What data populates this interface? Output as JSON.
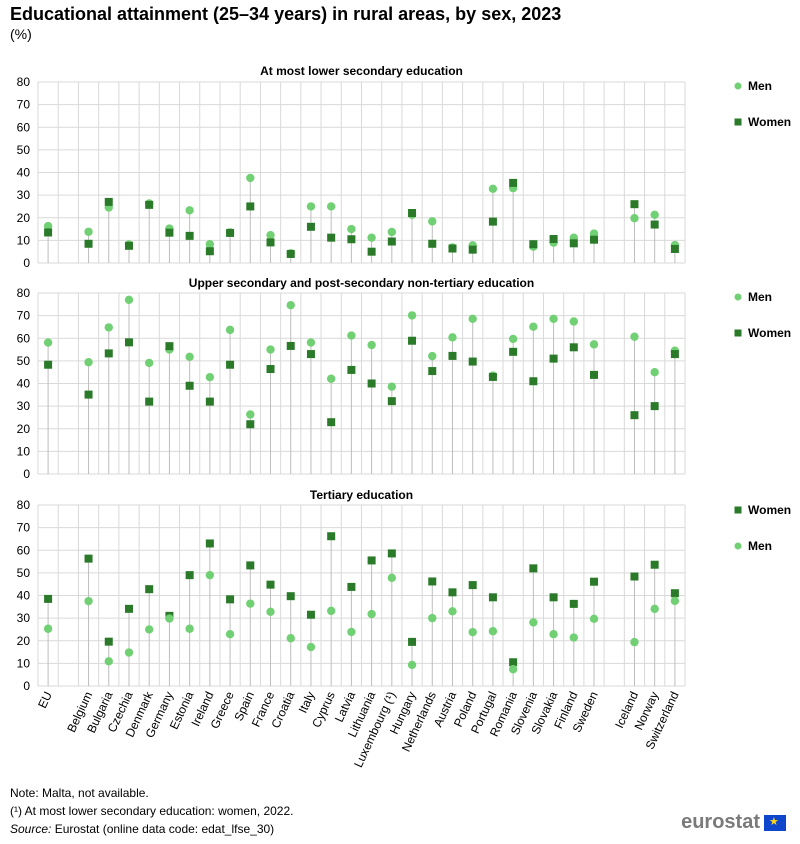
{
  "title": "Educational attainment (25–34 years) in rural areas, by sex, 2023",
  "unit": "(%)",
  "colors": {
    "men": "#71d073",
    "women": "#2a7a2a",
    "grid": "#d9d9d9",
    "stem": "#bdbdbd"
  },
  "chart_data": [
    {
      "type": "scatter",
      "title": "At most lower secondary education",
      "categories": [
        "EU",
        "Belgium",
        "Bulgaria",
        "Czechia",
        "Denmark",
        "Germany",
        "Estonia",
        "Ireland",
        "Greece",
        "Spain",
        "France",
        "Croatia",
        "Italy",
        "Cyprus",
        "Latvia",
        "Lithuania",
        "Luxembourg (¹)",
        "Hungary",
        "Netherlands",
        "Austria",
        "Poland",
        "Portugal",
        "Romania",
        "Slovenia",
        "Slovakia",
        "Finland",
        "Sweden",
        "Iceland",
        "Norway",
        "Switzerland"
      ],
      "ylim": [
        0,
        80
      ],
      "yticks": [
        0,
        10,
        20,
        30,
        40,
        50,
        60,
        70,
        80
      ],
      "legend": [
        "Men",
        "Women"
      ],
      "series": [
        {
          "name": "Men",
          "marker": "circle",
          "values": [
            16.3,
            13.8,
            24.5,
            8.2,
            26.3,
            15.2,
            23.3,
            8.3,
            13.5,
            37.6,
            12.3,
            4.3,
            25.0,
            25.0,
            15.0,
            11.2,
            13.7,
            21.3,
            18.4,
            6.9,
            7.8,
            32.8,
            33.1,
            7.2,
            9.0,
            11.2,
            13.0,
            19.8,
            21.3,
            7.9
          ]
        },
        {
          "name": "Women",
          "marker": "square",
          "values": [
            13.5,
            8.5,
            27.0,
            7.6,
            25.7,
            13.4,
            12.0,
            5.2,
            13.3,
            25.0,
            9.1,
            4.0,
            16.0,
            11.2,
            10.5,
            5.0,
            9.5,
            22.1,
            8.5,
            6.4,
            5.9,
            18.3,
            35.4,
            8.3,
            10.6,
            8.7,
            10.3,
            26.0,
            17.0,
            6.2
          ]
        }
      ]
    },
    {
      "type": "scatter",
      "title": "Upper secondary and post-secondary non-tertiary education",
      "categories": [
        "EU",
        "Belgium",
        "Bulgaria",
        "Czechia",
        "Denmark",
        "Germany",
        "Estonia",
        "Ireland",
        "Greece",
        "Spain",
        "France",
        "Croatia",
        "Italy",
        "Cyprus",
        "Latvia",
        "Lithuania",
        "Luxembourg (¹)",
        "Hungary",
        "Netherlands",
        "Austria",
        "Poland",
        "Portugal",
        "Romania",
        "Slovenia",
        "Slovakia",
        "Finland",
        "Sweden",
        "Iceland",
        "Norway",
        "Switzerland"
      ],
      "ylim": [
        0,
        80
      ],
      "yticks": [
        0,
        10,
        20,
        30,
        40,
        50,
        60,
        70,
        80
      ],
      "legend": [
        "Men",
        "Women"
      ],
      "series": [
        {
          "name": "Men",
          "marker": "circle",
          "values": [
            58.1,
            49.4,
            64.8,
            77.0,
            49.1,
            55.0,
            51.8,
            42.8,
            63.7,
            26.3,
            55.0,
            74.6,
            58.1,
            42.1,
            61.2,
            57.0,
            38.6,
            70.1,
            52.1,
            60.4,
            68.6,
            43.5,
            59.7,
            65.1,
            68.6,
            67.4,
            57.3,
            60.7,
            45.0,
            54.5
          ]
        },
        {
          "name": "Women",
          "marker": "square",
          "values": [
            48.3,
            35.1,
            53.3,
            58.2,
            32.0,
            56.5,
            39.0,
            32.0,
            48.3,
            22.0,
            46.4,
            56.6,
            53.0,
            22.9,
            46.0,
            40.0,
            32.2,
            58.9,
            45.5,
            52.2,
            49.7,
            42.9,
            54.0,
            41.0,
            51.0,
            56.0,
            43.8,
            26.0,
            30.0,
            53.0
          ]
        }
      ]
    },
    {
      "type": "scatter",
      "title": "Tertiary education",
      "categories": [
        "EU",
        "Belgium",
        "Bulgaria",
        "Czechia",
        "Denmark",
        "Germany",
        "Estonia",
        "Ireland",
        "Greece",
        "Spain",
        "France",
        "Croatia",
        "Italy",
        "Cyprus",
        "Latvia",
        "Lithuania",
        "Luxembourg (¹)",
        "Hungary",
        "Netherlands",
        "Austria",
        "Poland",
        "Portugal",
        "Romania",
        "Slovenia",
        "Slovakia",
        "Finland",
        "Sweden",
        "Iceland",
        "Norway",
        "Switzerland"
      ],
      "ylim": [
        0,
        80
      ],
      "yticks": [
        0,
        10,
        20,
        30,
        40,
        50,
        60,
        70,
        80
      ],
      "legend": [
        "Women",
        "Men"
      ],
      "series": [
        {
          "name": "Women",
          "marker": "square",
          "values": [
            38.5,
            56.3,
            19.6,
            34.1,
            42.8,
            31.0,
            49.0,
            63.0,
            38.3,
            53.3,
            44.8,
            39.7,
            31.5,
            66.2,
            43.8,
            55.5,
            58.6,
            19.5,
            46.2,
            41.4,
            44.6,
            39.2,
            10.5,
            52.0,
            39.2,
            36.3,
            46.1,
            48.4,
            53.6,
            41.0
          ]
        },
        {
          "name": "Men",
          "marker": "circle",
          "values": [
            25.3,
            37.5,
            10.9,
            14.8,
            25.0,
            29.8,
            25.3,
            49.0,
            22.9,
            36.4,
            32.8,
            21.1,
            17.2,
            33.2,
            23.9,
            31.8,
            47.8,
            9.3,
            30.0,
            33.0,
            23.8,
            24.2,
            7.4,
            28.1,
            22.9,
            21.4,
            29.7,
            19.4,
            34.1,
            37.6
          ]
        }
      ]
    }
  ],
  "notes": {
    "note1": "Note: Malta, not available.",
    "note2": "(¹) At most lower secondary education: women, 2022.",
    "source_label": "Source:",
    "source_text": " Eurostat (online data code: edat_lfse_30)"
  },
  "logo": {
    "text": "eurostat"
  }
}
